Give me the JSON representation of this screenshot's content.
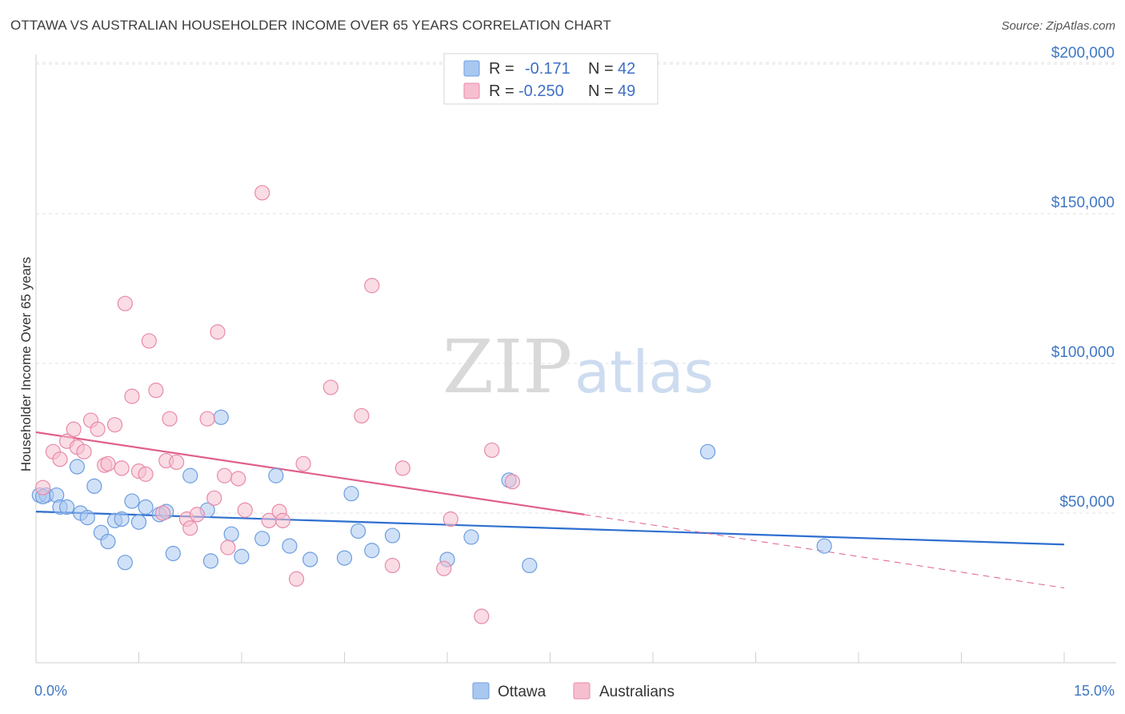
{
  "title": "OTTAWA VS AUSTRALIAN HOUSEHOLDER INCOME OVER 65 YEARS CORRELATION CHART",
  "source": "Source: ZipAtlas.com",
  "watermark": {
    "zip": "ZIP",
    "atlas": "atlas"
  },
  "legend": {
    "rows": [
      {
        "r_label": "R =",
        "r_value": "-0.171",
        "n_label": "N =",
        "n_value": "42",
        "color": "#a9c8f0",
        "edge": "#6d9de0"
      },
      {
        "r_label": "R =",
        "r_value": "-0.250",
        "n_label": "N =",
        "n_value": "49",
        "color": "#f6bfd0",
        "edge": "#e88aa8"
      }
    ]
  },
  "bottom_legend": [
    {
      "label": "Ottawa",
      "color": "#a9c8f0",
      "edge": "#6d9de0"
    },
    {
      "label": "Australians",
      "color": "#f6bfd0",
      "edge": "#e88aa8"
    }
  ],
  "chart_data": {
    "type": "scatter",
    "title": "OTTAWA VS AUSTRALIAN HOUSEHOLDER INCOME OVER 65 YEARS CORRELATION CHART",
    "xlabel": "",
    "ylabel": "Householder Income Over 65 years",
    "xlim": [
      0,
      15
    ],
    "ylim": [
      0,
      215000
    ],
    "x_tick_labels": [
      {
        "value": 0,
        "label": "0.0%"
      },
      {
        "value": 15,
        "label": "15.0%"
      }
    ],
    "y_ticks": [
      {
        "value": 50000,
        "label": "$50,000"
      },
      {
        "value": 100000,
        "label": "$100,000"
      },
      {
        "value": 150000,
        "label": "$150,000"
      },
      {
        "value": 200000,
        "label": "$200,000"
      }
    ],
    "grid": true,
    "series": [
      {
        "name": "Ottawa",
        "color": "#6d9de0",
        "fill": "#a9c8f0",
        "trend": {
          "x0": 0,
          "y0": 50500,
          "x1": 15,
          "y1": 39500
        },
        "points": [
          [
            0.05,
            56000
          ],
          [
            0.15,
            56000
          ],
          [
            0.3,
            56000
          ],
          [
            0.35,
            52000
          ],
          [
            0.45,
            52000
          ],
          [
            0.6,
            65500
          ],
          [
            0.65,
            50000
          ],
          [
            0.75,
            48500
          ],
          [
            0.85,
            59000
          ],
          [
            0.95,
            43500
          ],
          [
            1.05,
            40500
          ],
          [
            1.15,
            47500
          ],
          [
            1.25,
            48000
          ],
          [
            1.3,
            33500
          ],
          [
            1.4,
            54000
          ],
          [
            1.5,
            47000
          ],
          [
            1.6,
            52000
          ],
          [
            1.8,
            49500
          ],
          [
            1.9,
            50500
          ],
          [
            2.0,
            36500
          ],
          [
            2.25,
            62500
          ],
          [
            2.5,
            51000
          ],
          [
            2.55,
            34000
          ],
          [
            2.7,
            82000
          ],
          [
            2.85,
            43000
          ],
          [
            3.0,
            35500
          ],
          [
            3.3,
            41500
          ],
          [
            3.5,
            62500
          ],
          [
            3.7,
            39000
          ],
          [
            4.0,
            34500
          ],
          [
            4.5,
            35000
          ],
          [
            4.6,
            56500
          ],
          [
            4.7,
            44000
          ],
          [
            4.9,
            37500
          ],
          [
            5.2,
            42500
          ],
          [
            6.0,
            34500
          ],
          [
            6.35,
            42000
          ],
          [
            6.9,
            61000
          ],
          [
            7.2,
            32500
          ],
          [
            9.8,
            70500
          ],
          [
            11.5,
            39000
          ],
          [
            0.1,
            55500
          ]
        ]
      },
      {
        "name": "Australians",
        "color": "#e88aa8",
        "fill": "#f6bfd0",
        "trend": {
          "x0": 0,
          "y0": 77000,
          "x1": 8.0,
          "y1": 49500
        },
        "trend_dashed": {
          "x0": 8.0,
          "y0": 49500,
          "x1": 15,
          "y1": 25000
        },
        "points": [
          [
            0.1,
            58500
          ],
          [
            0.25,
            70500
          ],
          [
            0.35,
            68000
          ],
          [
            0.45,
            74000
          ],
          [
            0.55,
            78000
          ],
          [
            0.6,
            72000
          ],
          [
            0.7,
            70500
          ],
          [
            0.8,
            81000
          ],
          [
            0.9,
            78000
          ],
          [
            1.0,
            66000
          ],
          [
            1.05,
            66500
          ],
          [
            1.15,
            79500
          ],
          [
            1.25,
            65000
          ],
          [
            1.3,
            120000
          ],
          [
            1.4,
            89000
          ],
          [
            1.5,
            64000
          ],
          [
            1.6,
            63000
          ],
          [
            1.65,
            107500
          ],
          [
            1.75,
            91000
          ],
          [
            1.85,
            50000
          ],
          [
            1.9,
            67500
          ],
          [
            1.95,
            81500
          ],
          [
            2.05,
            67000
          ],
          [
            2.2,
            48000
          ],
          [
            2.25,
            45000
          ],
          [
            2.35,
            49500
          ],
          [
            2.5,
            81500
          ],
          [
            2.6,
            55000
          ],
          [
            2.65,
            110500
          ],
          [
            2.75,
            62500
          ],
          [
            2.8,
            38500
          ],
          [
            2.95,
            61500
          ],
          [
            3.05,
            51000
          ],
          [
            3.3,
            157000
          ],
          [
            3.4,
            47500
          ],
          [
            3.55,
            50500
          ],
          [
            3.6,
            47500
          ],
          [
            3.8,
            28000
          ],
          [
            3.9,
            66500
          ],
          [
            4.3,
            92000
          ],
          [
            4.75,
            82500
          ],
          [
            4.9,
            126000
          ],
          [
            5.2,
            32500
          ],
          [
            5.35,
            65000
          ],
          [
            5.95,
            31500
          ],
          [
            6.05,
            48000
          ],
          [
            6.5,
            15500
          ],
          [
            6.65,
            71000
          ],
          [
            6.95,
            60500
          ]
        ]
      }
    ]
  }
}
